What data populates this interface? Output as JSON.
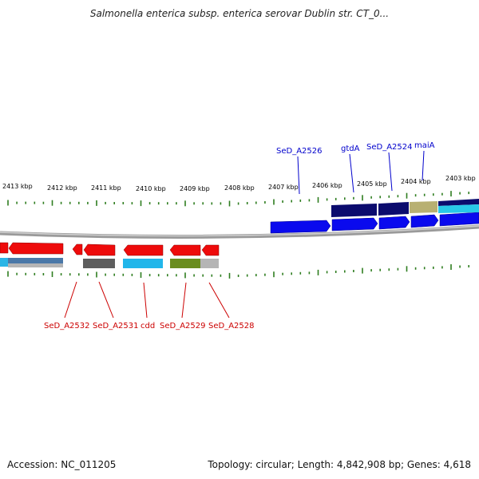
{
  "title": "Salmonella enterica subsp. enterica serovar Dublin str. CT_0...",
  "footer": {
    "accession": "Accession: NC_011205",
    "topology": "Topology: circular; Length: 4,842,908 bp; Genes: 4,618"
  },
  "colors": {
    "backbone": "#8a8a8a",
    "tick": "#2e7d1f",
    "forward_gene": "#0000ee",
    "reverse_gene": "#ee0000",
    "forward_label": "#0000cc",
    "reverse_label": "#cc0000"
  },
  "kbp_labels": [
    "2413 kbp",
    "2412 kbp",
    "2411 kbp",
    "2410 kbp",
    "2409 kbp",
    "2408 kbp",
    "2407 kbp",
    "2406 kbp",
    "2405 kbp",
    "2404 kbp",
    "2403 kbp"
  ],
  "forward_gene_labels": [
    "SeD_A2526",
    "gtdA",
    "SeD_A2524",
    "maiA"
  ],
  "reverse_gene_labels": [
    "SeD_A2532",
    "SeD_A2531",
    "cdd",
    "SeD_A2529",
    "SeD_A2528"
  ]
}
